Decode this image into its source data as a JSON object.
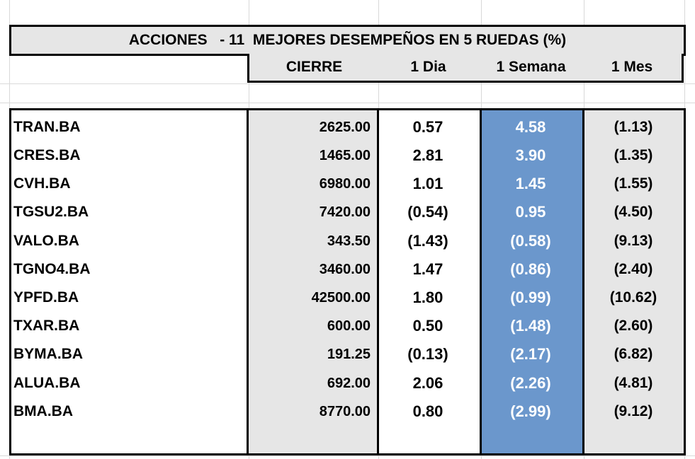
{
  "table": {
    "title": "ACCIONES   - 11  MEJORES DESEMPEÑOS EN 5 RUEDAS (%)",
    "headers": {
      "close": "CIERRE",
      "day": "1 Dia",
      "week": "1 Semana",
      "month": "1 Mes"
    },
    "rows": [
      {
        "ticker": "TRAN.BA",
        "close": "2625.00",
        "day": "0.57",
        "week": "4.58",
        "month": "(1.13)"
      },
      {
        "ticker": "CRES.BA",
        "close": "1465.00",
        "day": "2.81",
        "week": "3.90",
        "month": "(1.35)"
      },
      {
        "ticker": "CVH.BA",
        "close": "6980.00",
        "day": "1.01",
        "week": "1.45",
        "month": "(1.55)"
      },
      {
        "ticker": "TGSU2.BA",
        "close": "7420.00",
        "day": "(0.54)",
        "week": "0.95",
        "month": "(4.50)"
      },
      {
        "ticker": "VALO.BA",
        "close": "343.50",
        "day": "(1.43)",
        "week": "(0.58)",
        "month": "(9.13)"
      },
      {
        "ticker": "TGNO4.BA",
        "close": "3460.00",
        "day": "1.47",
        "week": "(0.86)",
        "month": "(2.40)"
      },
      {
        "ticker": "YPFD.BA",
        "close": "42500.00",
        "day": "1.80",
        "week": "(0.99)",
        "month": "(10.62)"
      },
      {
        "ticker": "TXAR.BA",
        "close": "600.00",
        "day": "0.50",
        "week": "(1.48)",
        "month": "(2.60)"
      },
      {
        "ticker": "BYMA.BA",
        "close": "191.25",
        "day": "(0.13)",
        "week": "(2.17)",
        "month": "(6.82)"
      },
      {
        "ticker": "ALUA.BA",
        "close": "692.00",
        "day": "2.06",
        "week": "(2.26)",
        "month": "(4.81)"
      },
      {
        "ticker": "BMA.BA",
        "close": "8770.00",
        "day": "0.80",
        "week": "(2.99)",
        "month": "(9.12)"
      }
    ]
  },
  "colors": {
    "header_bg": "#e6e6e6",
    "week_highlight": "#6b97cc"
  }
}
